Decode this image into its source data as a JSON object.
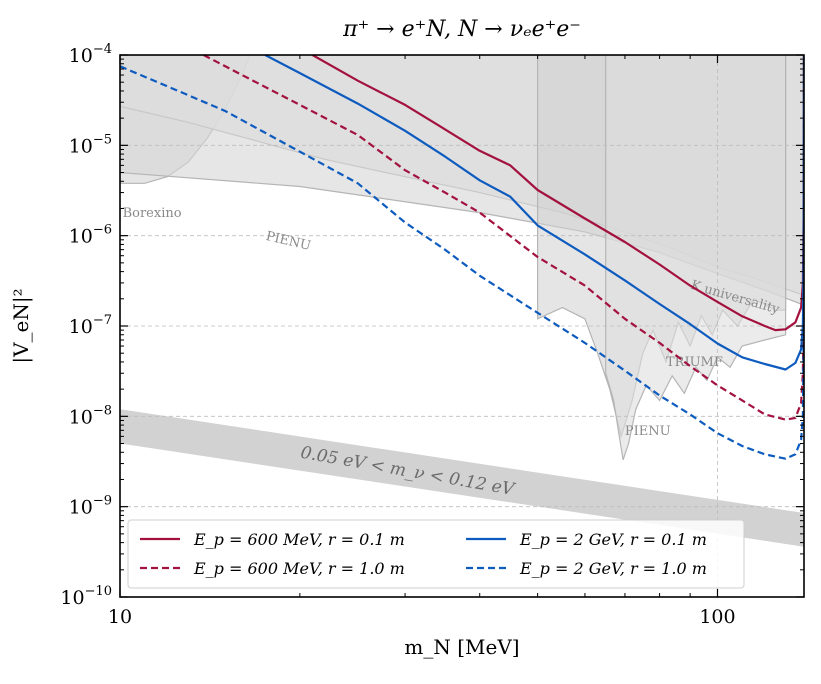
{
  "chart_data": {
    "type": "line",
    "title": "π⁺ → e⁺N, N → νₑe⁺e⁻",
    "xlabel": "m_N [MeV]",
    "ylabel": "|V_eN|²",
    "xscale": "log",
    "yscale": "log",
    "xlim": [
      10,
      139.57
    ],
    "ylim": [
      1e-10,
      0.0001
    ],
    "x_ticks": [
      {
        "value": 10,
        "label": "10"
      },
      {
        "value": 100,
        "label": "100"
      }
    ],
    "y_ticks": [
      {
        "value": 0.0001,
        "label": "10",
        "exp": "−4"
      },
      {
        "value": 1e-05,
        "label": "10",
        "exp": "−5"
      },
      {
        "value": 1e-06,
        "label": "10",
        "exp": "−6"
      },
      {
        "value": 1e-07,
        "label": "10",
        "exp": "−7"
      },
      {
        "value": 1e-08,
        "label": "10",
        "exp": "−8"
      },
      {
        "value": 1e-09,
        "label": "10",
        "exp": "−9"
      },
      {
        "value": 1e-10,
        "label": "10",
        "exp": "−10"
      }
    ],
    "grid": true,
    "legend_position": "bottom",
    "series": [
      {
        "name": "E_p = 600 MeV, r = 0.1 m",
        "color": "#a3123f",
        "dash": "solid",
        "points": [
          [
            21,
            0.0001
          ],
          [
            25,
            5.2e-05
          ],
          [
            30,
            2.8e-05
          ],
          [
            35,
            1.5e-05
          ],
          [
            40,
            8.7e-06
          ],
          [
            45,
            6e-06
          ],
          [
            50,
            3.2e-06
          ],
          [
            60,
            1.55e-06
          ],
          [
            70,
            8.5e-07
          ],
          [
            80,
            4.8e-07
          ],
          [
            90,
            2.8e-07
          ],
          [
            100,
            1.85e-07
          ],
          [
            110,
            1.28e-07
          ],
          [
            120,
            1e-07
          ],
          [
            125,
            9e-08
          ],
          [
            130,
            9.2e-08
          ],
          [
            135,
            1.1e-07
          ],
          [
            138,
            1.6e-07
          ],
          [
            139,
            3e-07
          ],
          [
            139.4,
            2e-06
          ],
          [
            139.57,
            0.0001
          ]
        ]
      },
      {
        "name": "E_p = 600 MeV, r = 1.0 m",
        "color": "#a3123f",
        "dash": "dashed",
        "points": [
          [
            13.8,
            0.0001
          ],
          [
            16,
            6e-05
          ],
          [
            20,
            2.8e-05
          ],
          [
            25,
            1.3e-05
          ],
          [
            30,
            5.3e-06
          ],
          [
            35,
            3e-06
          ],
          [
            40,
            1.8e-06
          ],
          [
            50,
            5.8e-07
          ],
          [
            60,
            2.8e-07
          ],
          [
            70,
            1.2e-07
          ],
          [
            80,
            6.5e-08
          ],
          [
            90,
            3.6e-08
          ],
          [
            100,
            2.2e-08
          ],
          [
            110,
            1.5e-08
          ],
          [
            120,
            1.05e-08
          ],
          [
            130,
            9.2e-09
          ],
          [
            135,
            9.6e-09
          ],
          [
            138,
            1.4e-08
          ],
          [
            139,
            3e-08
          ],
          [
            139.4,
            2e-07
          ],
          [
            139.57,
            0.0001
          ]
        ]
      },
      {
        "name": "E_p = 2 GeV, r = 0.1 m",
        "color": "#0e5bbf",
        "dash": "solid",
        "points": [
          [
            17.5,
            0.0001
          ],
          [
            20,
            6.3e-05
          ],
          [
            25,
            2.9e-05
          ],
          [
            30,
            1.45e-05
          ],
          [
            35,
            7.5e-06
          ],
          [
            40,
            4.1e-06
          ],
          [
            45,
            2.7e-06
          ],
          [
            50,
            1.3e-06
          ],
          [
            60,
            6.2e-07
          ],
          [
            70,
            3.2e-07
          ],
          [
            80,
            1.75e-07
          ],
          [
            90,
            1.05e-07
          ],
          [
            100,
            6.4e-08
          ],
          [
            110,
            4.5e-08
          ],
          [
            120,
            3.8e-08
          ],
          [
            130,
            3.3e-08
          ],
          [
            135,
            3.9e-08
          ],
          [
            138,
            5.5e-08
          ],
          [
            139,
            1e-07
          ],
          [
            139.4,
            8e-07
          ],
          [
            139.57,
            0.0001
          ]
        ]
      },
      {
        "name": "E_p = 2 GeV, r = 1.0 m",
        "color": "#0e5bbf",
        "dash": "dashed",
        "points": [
          [
            10,
            7.5e-05
          ],
          [
            12,
            4.5e-05
          ],
          [
            15,
            2.4e-05
          ],
          [
            20,
            8.5e-06
          ],
          [
            25,
            3.8e-06
          ],
          [
            30,
            1.4e-06
          ],
          [
            35,
            7e-07
          ],
          [
            40,
            3.6e-07
          ],
          [
            50,
            1.4e-07
          ],
          [
            60,
            6.5e-08
          ],
          [
            70,
            3.2e-08
          ],
          [
            80,
            1.7e-08
          ],
          [
            90,
            1.05e-08
          ],
          [
            100,
            6.5e-09
          ],
          [
            110,
            4.7e-09
          ],
          [
            120,
            3.8e-09
          ],
          [
            130,
            3.4e-09
          ],
          [
            135,
            3.8e-09
          ],
          [
            138,
            5.5e-09
          ],
          [
            139,
            1e-08
          ],
          [
            139.4,
            8e-08
          ],
          [
            139.57,
            0.0001
          ]
        ]
      }
    ],
    "constraints": [
      {
        "name": "Borexino",
        "color": "#8a8a8a",
        "points": [
          [
            10,
            0.0001
          ],
          [
            10,
            3.8e-06
          ],
          [
            11,
            3.8e-06
          ],
          [
            12,
            4.5e-06
          ],
          [
            13,
            6.5e-06
          ],
          [
            14,
            1.2e-05
          ],
          [
            15,
            2.5e-05
          ],
          [
            16,
            6e-05
          ],
          [
            16.5,
            0.0001
          ]
        ]
      },
      {
        "name": "PIENU",
        "label_x": 17.5,
        "label_y": 9e-07,
        "color": "#8a8a8a",
        "points": [
          [
            10,
            0.0001
          ],
          [
            10,
            2.7e-05
          ],
          [
            13,
            1.8e-05
          ],
          [
            18,
            1e-05
          ],
          [
            22,
            7e-06
          ],
          [
            30,
            4.5e-06
          ],
          [
            40,
            3e-06
          ],
          [
            55,
            1.8e-06
          ],
          [
            70,
            1.1e-06
          ],
          [
            85,
            7e-07
          ],
          [
            100,
            4.5e-07
          ],
          [
            115,
            3.4e-07
          ],
          [
            125,
            2.8e-07
          ],
          [
            139.57,
            2.2e-07
          ],
          [
            139.57,
            0.0001
          ]
        ]
      },
      {
        "name": "K universality",
        "color": "#8a8a8a",
        "points": [
          [
            10,
            0.0001
          ],
          [
            10,
            5e-06
          ],
          [
            20,
            3.5e-06
          ],
          [
            40,
            1.8e-06
          ],
          [
            60,
            1.1e-06
          ],
          [
            80,
            6.5e-07
          ],
          [
            100,
            3.8e-07
          ],
          [
            120,
            2.5e-07
          ],
          [
            139.57,
            1.7e-07
          ],
          [
            139.57,
            0.0001
          ]
        ]
      },
      {
        "name": "TRIUMF",
        "color": "#8a8a8a",
        "points": [
          [
            50,
            0.0001
          ],
          [
            50,
            1.2e-07
          ],
          [
            55,
            1.6e-07
          ],
          [
            60,
            1.2e-07
          ],
          [
            63,
            5e-08
          ],
          [
            66,
            2e-08
          ],
          [
            69,
            6e-09
          ],
          [
            72,
            1.5e-08
          ],
          [
            75,
            5e-08
          ],
          [
            78,
            9e-08
          ],
          [
            82,
            4e-08
          ],
          [
            86,
            1.1e-07
          ],
          [
            90,
            6e-08
          ],
          [
            94,
            1.3e-07
          ],
          [
            98,
            8e-08
          ],
          [
            102,
            1.5e-07
          ],
          [
            108,
            1e-07
          ],
          [
            115,
            2e-07
          ],
          [
            125,
            1.5e-07
          ],
          [
            130,
            1.5e-07
          ],
          [
            130,
            0.0001
          ]
        ]
      },
      {
        "name": "PIENU",
        "color": "#8a8a8a",
        "points": [
          [
            65,
            0.0001
          ],
          [
            65,
            3e-08
          ],
          [
            67,
            1.5e-08
          ],
          [
            68.5,
            6e-09
          ],
          [
            69.5,
            3.3e-09
          ],
          [
            71,
            5e-09
          ],
          [
            73,
            1.2e-08
          ],
          [
            76,
            2.2e-08
          ],
          [
            80,
            1.5e-08
          ],
          [
            84,
            2.8e-08
          ],
          [
            88,
            1.8e-08
          ],
          [
            92,
            3.5e-08
          ],
          [
            96,
            2.5e-08
          ],
          [
            100,
            4.5e-08
          ],
          [
            105,
            3.5e-08
          ],
          [
            110,
            6e-08
          ],
          [
            120,
            7e-08
          ],
          [
            130,
            8e-08
          ],
          [
            130,
            0.0001
          ]
        ]
      },
      {
        "name": "0.05 eV < m_ν < 0.12 eV",
        "color": "#d2d2d2",
        "points": [
          [
            10,
            1.2e-08
          ],
          [
            139.57,
            8.5e-10
          ],
          [
            139.57,
            3.6e-10
          ],
          [
            10,
            5e-09
          ]
        ]
      }
    ],
    "annotations": [
      {
        "text": "Borexino",
        "x": 10.1,
        "y": 1.6e-06,
        "rotate": 0
      },
      {
        "text": "PIENU",
        "x": 17.5,
        "y": 9e-07,
        "rotate": 13
      },
      {
        "text": "K universality",
        "x": 90,
        "y": 2.6e-07,
        "rotate": 16
      },
      {
        "text": "TRIUMF",
        "x": 82,
        "y": 3.6e-08,
        "rotate": 0
      },
      {
        "text": "PIENU",
        "x": 70,
        "y": 6.2e-09,
        "rotate": 0
      },
      {
        "text": "0.05 eV < m_ν < 0.12 eV",
        "x": 20,
        "y": 3.5e-09,
        "rotate": 10
      }
    ]
  }
}
